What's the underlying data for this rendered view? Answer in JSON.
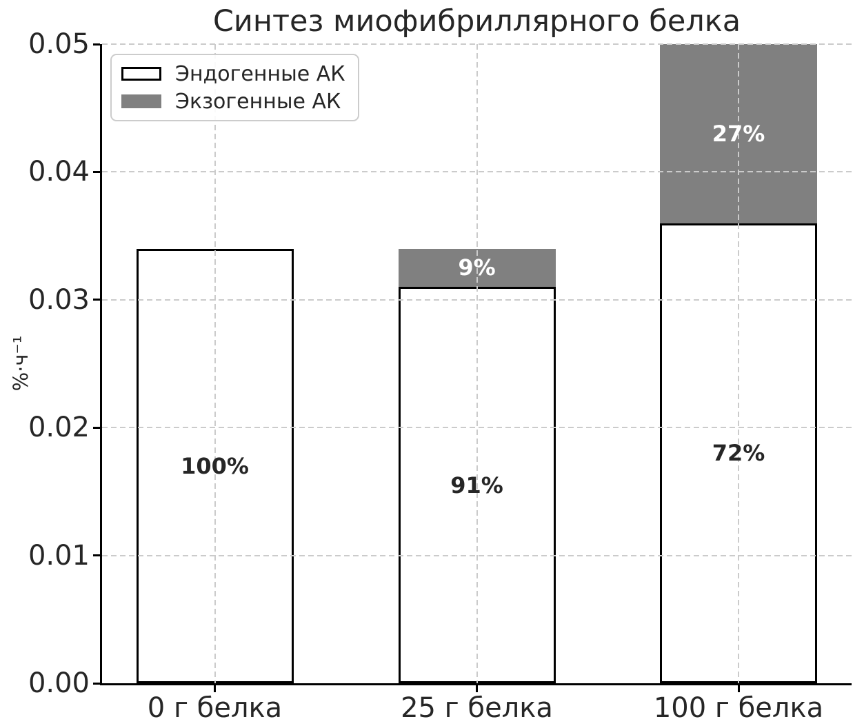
{
  "chart_data": {
    "type": "bar",
    "stacked": true,
    "title": "Синтез миофибриллярного белка",
    "ylabel": "%·ч⁻¹",
    "xlabel": "",
    "categories": [
      "0 г белка",
      "25 г белка",
      "100 г белка"
    ],
    "series": [
      {
        "name": "Эндогенные АК",
        "color": "#ffffff",
        "edge_color": "#000000",
        "label_color": "#262626",
        "values": [
          0.034,
          0.031,
          0.036
        ],
        "labels": [
          "100%",
          "91%",
          "72%"
        ]
      },
      {
        "name": "Экзогенные АК",
        "color": "#808080",
        "edge_color": "",
        "label_color": "#ffffff",
        "values": [
          0,
          0.003,
          0.014
        ],
        "labels": [
          "",
          "9%",
          "27%"
        ]
      }
    ],
    "ylim": [
      0,
      0.05
    ],
    "yticks": [
      {
        "value": 0,
        "label": "0.00"
      },
      {
        "value": 0.01,
        "label": "0.01"
      },
      {
        "value": 0.02,
        "label": "0.02"
      },
      {
        "value": 0.03,
        "label": "0.03"
      },
      {
        "value": 0.04,
        "label": "0.04"
      },
      {
        "value": 0.05,
        "label": "0.05"
      }
    ],
    "grid": {
      "style": "dashed",
      "color": "#cbcbcb",
      "x": true,
      "y": true
    },
    "legend_position": "upper left"
  },
  "legend": {
    "items": [
      {
        "label": "Эндогенные АК",
        "color": "#ffffff",
        "border": "#000000"
      },
      {
        "label": "Экзогенные АК",
        "color": "#808080",
        "border": ""
      }
    ]
  }
}
